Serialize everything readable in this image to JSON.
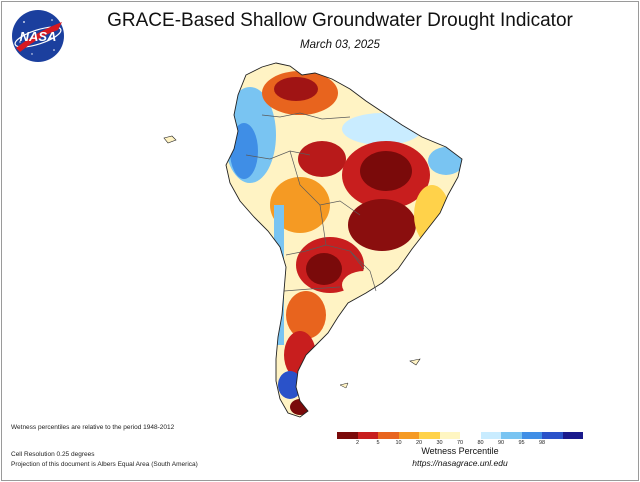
{
  "header": {
    "logo_text": "NASA",
    "title": "GRACE-Based Shallow Groundwater Drought Indicator",
    "date": "March 03, 2025"
  },
  "notes": {
    "baseline": "Wetness percentiles are relative to the period 1948-2012",
    "resolution": "Cell Resolution 0.25 degrees",
    "projection": "Projection of this document is Albers Equal Area (South America)"
  },
  "legend": {
    "title": "Wetness Percentile",
    "ticks": [
      "2",
      "5",
      "10",
      "20",
      "30",
      "70",
      "80",
      "90",
      "95",
      "98"
    ],
    "colors": [
      "#7a0a0a",
      "#c81e1e",
      "#e8641e",
      "#f59a23",
      "#ffd24a",
      "#fff6c2",
      "#ffffff",
      "#c9ecff",
      "#79c4f2",
      "#3f8ee6",
      "#2a52c9",
      "#1a1a8c"
    ]
  },
  "footer": {
    "url": "https://nasagrace.unl.edu"
  },
  "map": {
    "region": "South America",
    "colors": {
      "extreme_dry": "#7a0a0a",
      "severe_dry": "#c81e1e",
      "moderate_dry": "#e8641e",
      "dry": "#f59a23",
      "abnormal_dry": "#ffd24a",
      "near_normal": "#fff6c2",
      "wet": "#79c4f2",
      "very_wet": "#2a52c9",
      "border": "#5a5a5a"
    }
  }
}
